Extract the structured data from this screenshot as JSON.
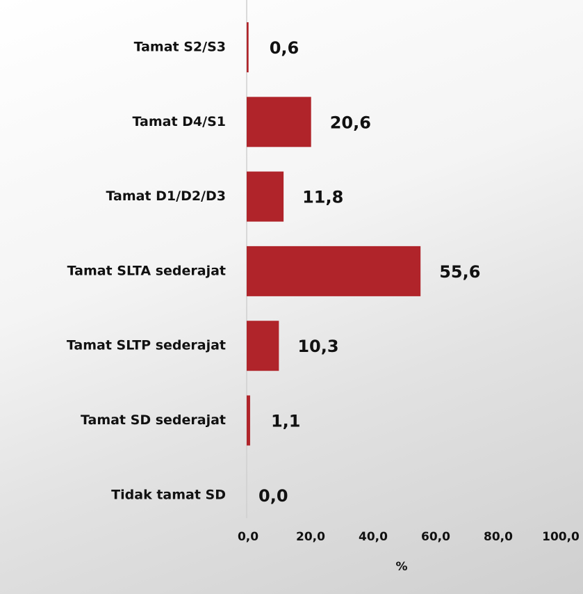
{
  "chart_data": {
    "type": "barh",
    "categories": [
      "Tamat S2/S3",
      "Tamat D4/S1",
      "Tamat D1/D2/D3",
      "Tamat SLTA sederajat",
      "Tamat SLTP sederajat",
      "Tamat SD sederajat",
      "Tidak tamat SD"
    ],
    "values": [
      0.6,
      20.6,
      11.8,
      55.6,
      10.3,
      1.1,
      0.0
    ],
    "value_labels": [
      "0,6",
      "20,6",
      "11,8",
      "55,6",
      "10,3",
      "1,1",
      "0,0"
    ],
    "color": "#b0242a",
    "xlim": [
      0,
      100
    ],
    "xticks": [
      {
        "value": 0,
        "label": "0,0"
      },
      {
        "value": 20,
        "label": "20,0"
      },
      {
        "value": 40,
        "label": "40,0"
      },
      {
        "value": 60,
        "label": "60,0"
      },
      {
        "value": 80,
        "label": "80,0"
      },
      {
        "value": 100,
        "label": "100,0"
      }
    ],
    "xlabel": "%"
  }
}
